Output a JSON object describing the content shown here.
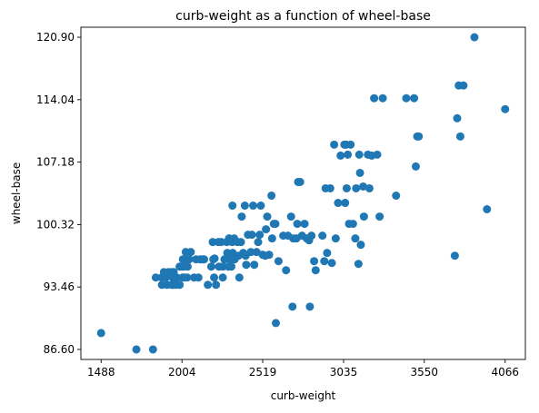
{
  "chart_data": {
    "type": "scatter",
    "title": "curb-weight as a function of wheel-base",
    "xlabel": "curb-weight",
    "ylabel": "wheel-base",
    "xlim": [
      1359,
      4195
    ],
    "ylim": [
      85.5,
      122.0
    ],
    "xticks": [
      1488,
      2004,
      2519,
      3035,
      3550,
      4066
    ],
    "xtick_labels": [
      "1488",
      "2004",
      "2519",
      "3035",
      "3550",
      "4066"
    ],
    "yticks": [
      86.6,
      93.46,
      100.32,
      107.18,
      114.04,
      120.9
    ],
    "ytick_labels": [
      "86.60",
      "93.46",
      "100.32",
      "107.18",
      "114.04",
      "120.90"
    ],
    "grid": false,
    "legend": "none",
    "marker_color": "#1f77b4",
    "points": [
      [
        1488,
        88.4
      ],
      [
        1713,
        86.6
      ],
      [
        1819,
        86.6
      ],
      [
        1837,
        94.5
      ],
      [
        1874,
        94.5
      ],
      [
        1876,
        93.7
      ],
      [
        1889,
        95.1
      ],
      [
        1900,
        94.5
      ],
      [
        1909,
        93.7
      ],
      [
        1918,
        95.1
      ],
      [
        1938,
        93.7
      ],
      [
        1940,
        95.1
      ],
      [
        1944,
        94.5
      ],
      [
        1945,
        93.7
      ],
      [
        1950,
        93.7
      ],
      [
        1951,
        95.1
      ],
      [
        1956,
        94.5
      ],
      [
        1967,
        93.7
      ],
      [
        1971,
        94.5
      ],
      [
        1989,
        95.7
      ],
      [
        1989,
        93.7
      ],
      [
        2004,
        95.7
      ],
      [
        2008,
        94.5
      ],
      [
        2010,
        96.5
      ],
      [
        2015,
        95.7
      ],
      [
        2017,
        94.5
      ],
      [
        2024,
        96.5
      ],
      [
        2028,
        97.3
      ],
      [
        2037,
        94.5
      ],
      [
        2040,
        95.7
      ],
      [
        2050,
        96.5
      ],
      [
        2060,
        97.3
      ],
      [
        2081,
        94.5
      ],
      [
        2094,
        96.5
      ],
      [
        2109,
        94.5
      ],
      [
        2120,
        96.5
      ],
      [
        2128,
        96.5
      ],
      [
        2140,
        96.5
      ],
      [
        2145,
        96.5
      ],
      [
        2169,
        93.7
      ],
      [
        2191,
        95.7
      ],
      [
        2200,
        98.4
      ],
      [
        2204,
        96.5
      ],
      [
        2209,
        94.5
      ],
      [
        2212,
        96.6
      ],
      [
        2221,
        93.7
      ],
      [
        2236,
        98.4
      ],
      [
        2240,
        95.7
      ],
      [
        2254,
        98.4
      ],
      [
        2264,
        94.5
      ],
      [
        2265,
        95.7
      ],
      [
        2275,
        96.5
      ],
      [
        2290,
        98.4
      ],
      [
        2293,
        97.2
      ],
      [
        2300,
        95.7
      ],
      [
        2304,
        98.8
      ],
      [
        2310,
        96.5
      ],
      [
        2319,
        95.7
      ],
      [
        2324,
        98.4
      ],
      [
        2326,
        102.4
      ],
      [
        2328,
        97.2
      ],
      [
        2337,
        98.8
      ],
      [
        2340,
        96.5
      ],
      [
        2358,
        98.4
      ],
      [
        2365,
        96.9
      ],
      [
        2370,
        94.5
      ],
      [
        2380,
        98.4
      ],
      [
        2385,
        101.2
      ],
      [
        2395,
        97.2
      ],
      [
        2405,
        102.4
      ],
      [
        2410,
        96.9
      ],
      [
        2414,
        95.9
      ],
      [
        2425,
        99.2
      ],
      [
        2443,
        97.3
      ],
      [
        2450,
        99.2
      ],
      [
        2458,
        102.4
      ],
      [
        2465,
        95.9
      ],
      [
        2480,
        97.3
      ],
      [
        2490,
        98.4
      ],
      [
        2500,
        99.2
      ],
      [
        2507,
        102.4
      ],
      [
        2519,
        97.0
      ],
      [
        2535,
        96.9
      ],
      [
        2540,
        99.8
      ],
      [
        2548,
        101.2
      ],
      [
        2560,
        97.0
      ],
      [
        2575,
        103.5
      ],
      [
        2579,
        98.8
      ],
      [
        2590,
        100.4
      ],
      [
        2600,
        100.4
      ],
      [
        2603,
        89.5
      ],
      [
        2620,
        96.3
      ],
      [
        2650,
        99.1
      ],
      [
        2668,
        95.3
      ],
      [
        2680,
        99.1
      ],
      [
        2700,
        101.2
      ],
      [
        2709,
        91.3
      ],
      [
        2714,
        98.8
      ],
      [
        2734,
        98.8
      ],
      [
        2740,
        100.4
      ],
      [
        2745,
        105.0
      ],
      [
        2758,
        105.0
      ],
      [
        2770,
        99.1
      ],
      [
        2786,
        100.4
      ],
      [
        2800,
        98.8
      ],
      [
        2815,
        98.6
      ],
      [
        2820,
        91.3
      ],
      [
        2830,
        99.1
      ],
      [
        2847,
        96.3
      ],
      [
        2857,
        95.3
      ],
      [
        2900,
        99.1
      ],
      [
        2912,
        96.3
      ],
      [
        2920,
        104.3
      ],
      [
        2930,
        97.2
      ],
      [
        2950,
        104.3
      ],
      [
        2960,
        96.1
      ],
      [
        2975,
        109.1
      ],
      [
        2985,
        98.8
      ],
      [
        3000,
        102.7
      ],
      [
        3016,
        107.9
      ],
      [
        3040,
        109.1
      ],
      [
        3045,
        102.7
      ],
      [
        3051,
        109.1
      ],
      [
        3055,
        104.3
      ],
      [
        3062,
        108.0
      ],
      [
        3070,
        100.4
      ],
      [
        3080,
        109.1
      ],
      [
        3095,
        100.4
      ],
      [
        3110,
        98.8
      ],
      [
        3115,
        104.3
      ],
      [
        3130,
        96.0
      ],
      [
        3135,
        108.0
      ],
      [
        3140,
        106.0
      ],
      [
        3145,
        98.1
      ],
      [
        3160,
        104.5
      ],
      [
        3165,
        101.2
      ],
      [
        3190,
        108.0
      ],
      [
        3200,
        104.3
      ],
      [
        3215,
        107.9
      ],
      [
        3230,
        114.2
      ],
      [
        3250,
        108.0
      ],
      [
        3265,
        101.2
      ],
      [
        3285,
        114.2
      ],
      [
        3370,
        103.5
      ],
      [
        3435,
        114.2
      ],
      [
        3485,
        114.2
      ],
      [
        3496,
        106.7
      ],
      [
        3505,
        110.0
      ],
      [
        3515,
        110.0
      ],
      [
        3745,
        96.9
      ],
      [
        3760,
        112.0
      ],
      [
        3770,
        115.6
      ],
      [
        3780,
        110.0
      ],
      [
        3800,
        115.6
      ],
      [
        3870,
        120.9
      ],
      [
        3950,
        102.0
      ],
      [
        4066,
        113.0
      ]
    ]
  }
}
